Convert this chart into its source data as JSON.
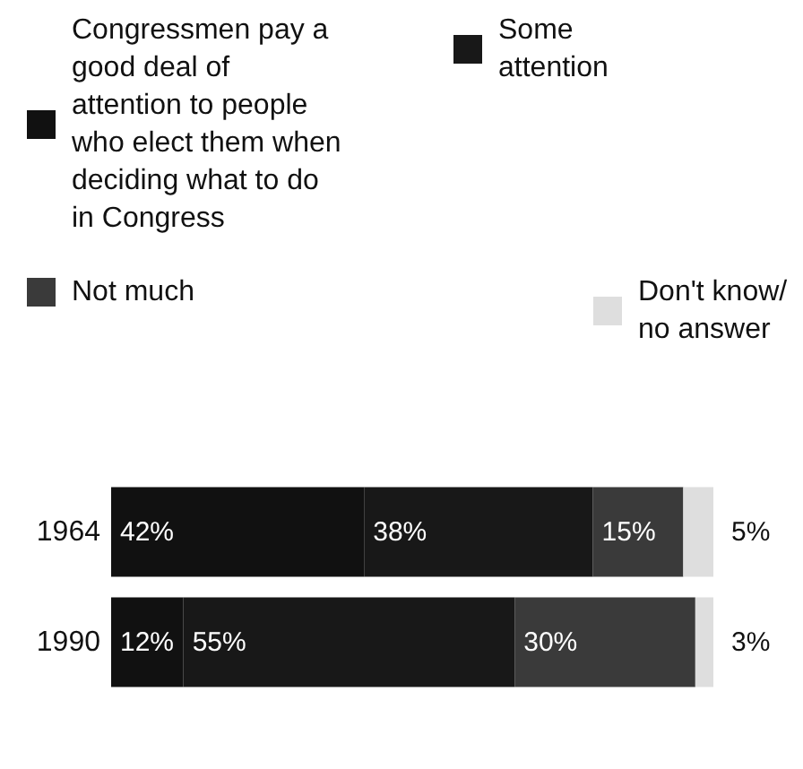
{
  "chart_data": {
    "type": "bar",
    "orientation": "horizontal",
    "stacked": true,
    "legend": "top",
    "categories": [
      "1964",
      "1990"
    ],
    "series": [
      {
        "name": "Congressmen pay a good deal of attention to people who elect them when deciding what to do in Congress",
        "color": "#111111",
        "values": [
          42,
          12
        ],
        "value_labels": [
          "42%",
          "12%"
        ]
      },
      {
        "name": "Some attention",
        "color": "#181818",
        "values": [
          38,
          55
        ],
        "value_labels": [
          "38%",
          "55%"
        ]
      },
      {
        "name": "Not much",
        "color": "#3a3a3a",
        "values": [
          15,
          30
        ],
        "value_labels": [
          "15%",
          "30%"
        ]
      },
      {
        "name": "Don't know/ no answer",
        "color": "#dedede",
        "values": [
          5,
          3
        ],
        "value_labels": [
          "5%",
          "3%"
        ]
      }
    ]
  }
}
